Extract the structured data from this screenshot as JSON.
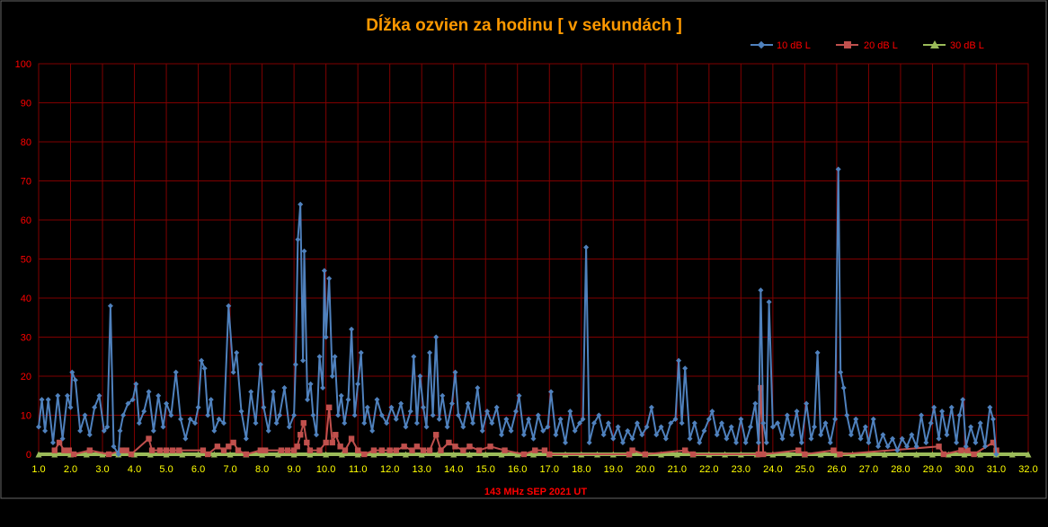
{
  "chart_data": {
    "type": "line",
    "title": "Dĺžka ozvien za hodinu [ v sekundách ]",
    "xlabel": "143 MHz SEP  2021  UT",
    "ylabel": "",
    "xlim": [
      1.0,
      32.0
    ],
    "ylim": [
      0,
      100
    ],
    "x_ticks": [
      "1.0",
      "2.0",
      "3.0",
      "4.0",
      "5.0",
      "6.0",
      "7.0",
      "8.0",
      "9.0",
      "10.0",
      "11.0",
      "12.0",
      "13.0",
      "14.0",
      "15.0",
      "16.0",
      "17.0",
      "18.0",
      "19.0",
      "20.0",
      "21.0",
      "22.0",
      "23.0",
      "24.0",
      "25.0",
      "26.0",
      "27.0",
      "28.0",
      "29.0",
      "30.0",
      "31.0",
      "32.0"
    ],
    "y_ticks": [
      "0",
      "10",
      "20",
      "30",
      "40",
      "50",
      "60",
      "70",
      "80",
      "90",
      "100"
    ],
    "grid": true,
    "legend_position": "top-right",
    "colors": {
      "title": "#FF9900",
      "axis_text": "#FF0000",
      "x_tick_text": "#FFFF00",
      "grid": "#800000",
      "series1": "#4F81BD",
      "series2": "#C0504D",
      "series3": "#9BBB59"
    },
    "series": [
      {
        "name": "10 dB L",
        "points": [
          [
            1.0,
            7
          ],
          [
            1.1,
            14
          ],
          [
            1.2,
            6
          ],
          [
            1.3,
            14
          ],
          [
            1.45,
            3
          ],
          [
            1.6,
            15
          ],
          [
            1.75,
            4
          ],
          [
            1.9,
            15
          ],
          [
            2.0,
            12
          ],
          [
            2.05,
            21
          ],
          [
            2.15,
            19
          ],
          [
            2.3,
            6
          ],
          [
            2.45,
            10
          ],
          [
            2.6,
            5
          ],
          [
            2.75,
            12
          ],
          [
            2.9,
            15
          ],
          [
            3.05,
            6
          ],
          [
            3.15,
            7
          ],
          [
            3.25,
            38
          ],
          [
            3.35,
            2
          ],
          [
            3.5,
            0
          ],
          [
            3.55,
            6
          ],
          [
            3.65,
            10
          ],
          [
            3.8,
            13
          ],
          [
            3.95,
            14
          ],
          [
            4.05,
            18
          ],
          [
            4.15,
            8
          ],
          [
            4.3,
            11
          ],
          [
            4.45,
            16
          ],
          [
            4.6,
            6
          ],
          [
            4.75,
            15
          ],
          [
            4.9,
            7
          ],
          [
            5.0,
            13
          ],
          [
            5.15,
            10
          ],
          [
            5.3,
            21
          ],
          [
            5.45,
            9
          ],
          [
            5.6,
            4
          ],
          [
            5.75,
            9
          ],
          [
            5.9,
            8
          ],
          [
            6.0,
            12
          ],
          [
            6.1,
            24
          ],
          [
            6.2,
            22
          ],
          [
            6.3,
            10
          ],
          [
            6.4,
            14
          ],
          [
            6.5,
            6
          ],
          [
            6.65,
            9
          ],
          [
            6.8,
            8
          ],
          [
            6.95,
            38
          ],
          [
            7.1,
            21
          ],
          [
            7.2,
            26
          ],
          [
            7.35,
            11
          ],
          [
            7.5,
            4
          ],
          [
            7.65,
            16
          ],
          [
            7.8,
            8
          ],
          [
            7.95,
            23
          ],
          [
            8.05,
            12
          ],
          [
            8.2,
            6
          ],
          [
            8.35,
            16
          ],
          [
            8.45,
            8
          ],
          [
            8.55,
            10
          ],
          [
            8.7,
            17
          ],
          [
            8.85,
            7
          ],
          [
            9.0,
            10
          ],
          [
            9.05,
            23
          ],
          [
            9.12,
            55
          ],
          [
            9.2,
            64
          ],
          [
            9.28,
            24
          ],
          [
            9.32,
            52
          ],
          [
            9.42,
            14
          ],
          [
            9.52,
            18
          ],
          [
            9.6,
            10
          ],
          [
            9.7,
            5
          ],
          [
            9.8,
            25
          ],
          [
            9.9,
            17
          ],
          [
            9.95,
            47
          ],
          [
            10.0,
            30
          ],
          [
            10.1,
            45
          ],
          [
            10.2,
            20
          ],
          [
            10.28,
            25
          ],
          [
            10.38,
            10
          ],
          [
            10.48,
            15
          ],
          [
            10.58,
            8
          ],
          [
            10.7,
            14
          ],
          [
            10.8,
            32
          ],
          [
            10.9,
            10
          ],
          [
            11.0,
            18
          ],
          [
            11.1,
            26
          ],
          [
            11.2,
            8
          ],
          [
            11.3,
            12
          ],
          [
            11.45,
            6
          ],
          [
            11.6,
            14
          ],
          [
            11.75,
            10
          ],
          [
            11.9,
            8
          ],
          [
            12.05,
            12
          ],
          [
            12.2,
            9
          ],
          [
            12.35,
            13
          ],
          [
            12.5,
            7
          ],
          [
            12.65,
            11
          ],
          [
            12.75,
            25
          ],
          [
            12.85,
            8
          ],
          [
            12.95,
            20
          ],
          [
            13.05,
            12
          ],
          [
            13.15,
            7
          ],
          [
            13.25,
            26
          ],
          [
            13.35,
            10
          ],
          [
            13.45,
            30
          ],
          [
            13.55,
            9
          ],
          [
            13.65,
            15
          ],
          [
            13.8,
            7
          ],
          [
            13.95,
            13
          ],
          [
            14.05,
            21
          ],
          [
            14.15,
            10
          ],
          [
            14.3,
            7
          ],
          [
            14.45,
            13
          ],
          [
            14.6,
            8
          ],
          [
            14.75,
            17
          ],
          [
            14.9,
            6
          ],
          [
            15.05,
            11
          ],
          [
            15.2,
            8
          ],
          [
            15.35,
            12
          ],
          [
            15.5,
            5
          ],
          [
            15.65,
            9
          ],
          [
            15.8,
            6
          ],
          [
            15.95,
            11
          ],
          [
            16.05,
            15
          ],
          [
            16.2,
            5
          ],
          [
            16.35,
            9
          ],
          [
            16.5,
            4
          ],
          [
            16.65,
            10
          ],
          [
            16.8,
            6
          ],
          [
            16.95,
            7
          ],
          [
            17.05,
            16
          ],
          [
            17.2,
            5
          ],
          [
            17.35,
            9
          ],
          [
            17.5,
            3
          ],
          [
            17.65,
            11
          ],
          [
            17.8,
            6
          ],
          [
            17.95,
            8
          ],
          [
            18.05,
            9
          ],
          [
            18.15,
            53
          ],
          [
            18.25,
            3
          ],
          [
            18.4,
            8
          ],
          [
            18.55,
            10
          ],
          [
            18.7,
            5
          ],
          [
            18.85,
            8
          ],
          [
            19.0,
            4
          ],
          [
            19.15,
            7
          ],
          [
            19.3,
            3
          ],
          [
            19.45,
            6
          ],
          [
            19.6,
            4
          ],
          [
            19.75,
            8
          ],
          [
            19.9,
            5
          ],
          [
            20.05,
            7
          ],
          [
            20.2,
            12
          ],
          [
            20.35,
            5
          ],
          [
            20.5,
            7
          ],
          [
            20.65,
            4
          ],
          [
            20.8,
            8
          ],
          [
            20.95,
            9
          ],
          [
            21.05,
            24
          ],
          [
            21.15,
            8
          ],
          [
            21.25,
            22
          ],
          [
            21.4,
            4
          ],
          [
            21.55,
            8
          ],
          [
            21.7,
            3
          ],
          [
            21.85,
            6
          ],
          [
            22.0,
            9
          ],
          [
            22.1,
            11
          ],
          [
            22.25,
            5
          ],
          [
            22.4,
            8
          ],
          [
            22.55,
            4
          ],
          [
            22.7,
            7
          ],
          [
            22.85,
            3
          ],
          [
            23.0,
            9
          ],
          [
            23.15,
            3
          ],
          [
            23.3,
            7
          ],
          [
            23.45,
            13
          ],
          [
            23.55,
            3
          ],
          [
            23.62,
            42
          ],
          [
            23.7,
            8
          ],
          [
            23.8,
            3
          ],
          [
            23.88,
            39
          ],
          [
            24.0,
            7
          ],
          [
            24.15,
            8
          ],
          [
            24.3,
            4
          ],
          [
            24.45,
            10
          ],
          [
            24.6,
            5
          ],
          [
            24.75,
            11
          ],
          [
            24.9,
            3
          ],
          [
            25.05,
            13
          ],
          [
            25.2,
            4
          ],
          [
            25.3,
            7
          ],
          [
            25.4,
            26
          ],
          [
            25.5,
            5
          ],
          [
            25.65,
            8
          ],
          [
            25.8,
            3
          ],
          [
            25.95,
            9
          ],
          [
            26.05,
            73
          ],
          [
            26.12,
            21
          ],
          [
            26.22,
            17
          ],
          [
            26.32,
            10
          ],
          [
            26.45,
            5
          ],
          [
            26.6,
            9
          ],
          [
            26.75,
            4
          ],
          [
            26.9,
            7
          ],
          [
            27.0,
            3
          ],
          [
            27.15,
            9
          ],
          [
            27.3,
            2
          ],
          [
            27.45,
            5
          ],
          [
            27.6,
            2
          ],
          [
            27.75,
            4
          ],
          [
            27.9,
            1
          ],
          [
            28.05,
            4
          ],
          [
            28.2,
            2
          ],
          [
            28.35,
            5
          ],
          [
            28.5,
            2
          ],
          [
            28.65,
            10
          ],
          [
            28.8,
            3
          ],
          [
            28.95,
            8
          ],
          [
            29.05,
            12
          ],
          [
            29.2,
            4
          ],
          [
            29.3,
            11
          ],
          [
            29.45,
            5
          ],
          [
            29.6,
            12
          ],
          [
            29.75,
            3
          ],
          [
            29.85,
            10
          ],
          [
            29.95,
            14
          ],
          [
            30.05,
            2
          ],
          [
            30.2,
            7
          ],
          [
            30.35,
            3
          ],
          [
            30.5,
            8
          ],
          [
            30.65,
            2
          ],
          [
            30.8,
            12
          ],
          [
            30.9,
            9
          ],
          [
            31.0,
            0
          ]
        ]
      },
      {
        "name": "20 dB L",
        "points": [
          [
            1.5,
            1
          ],
          [
            1.65,
            3
          ],
          [
            1.8,
            1
          ],
          [
            1.95,
            1
          ],
          [
            2.1,
            0
          ],
          [
            2.6,
            1
          ],
          [
            3.2,
            0
          ],
          [
            3.6,
            1
          ],
          [
            3.75,
            1
          ],
          [
            3.9,
            0
          ],
          [
            4.45,
            4
          ],
          [
            4.55,
            1
          ],
          [
            4.8,
            1
          ],
          [
            5.0,
            1
          ],
          [
            5.2,
            1
          ],
          [
            5.4,
            1
          ],
          [
            6.15,
            1
          ],
          [
            6.3,
            0
          ],
          [
            6.6,
            2
          ],
          [
            6.8,
            1
          ],
          [
            6.95,
            2
          ],
          [
            7.1,
            3
          ],
          [
            7.25,
            1
          ],
          [
            7.5,
            0
          ],
          [
            7.95,
            1
          ],
          [
            8.1,
            1
          ],
          [
            8.6,
            1
          ],
          [
            8.8,
            1
          ],
          [
            9.0,
            1
          ],
          [
            9.1,
            2
          ],
          [
            9.2,
            5
          ],
          [
            9.3,
            8
          ],
          [
            9.4,
            3
          ],
          [
            9.5,
            1
          ],
          [
            9.8,
            1
          ],
          [
            10.0,
            3
          ],
          [
            10.1,
            12
          ],
          [
            10.2,
            3
          ],
          [
            10.3,
            5
          ],
          [
            10.45,
            2
          ],
          [
            10.6,
            1
          ],
          [
            10.8,
            4
          ],
          [
            11.0,
            1
          ],
          [
            11.2,
            0
          ],
          [
            11.5,
            1
          ],
          [
            11.75,
            1
          ],
          [
            12.0,
            1
          ],
          [
            12.2,
            1
          ],
          [
            12.45,
            2
          ],
          [
            12.7,
            1
          ],
          [
            12.85,
            2
          ],
          [
            13.05,
            1
          ],
          [
            13.25,
            1
          ],
          [
            13.45,
            5
          ],
          [
            13.6,
            1
          ],
          [
            13.85,
            3
          ],
          [
            14.05,
            2
          ],
          [
            14.3,
            1
          ],
          [
            14.5,
            2
          ],
          [
            14.8,
            1
          ],
          [
            15.15,
            2
          ],
          [
            15.6,
            1
          ],
          [
            16.2,
            0
          ],
          [
            16.55,
            1
          ],
          [
            16.85,
            1
          ],
          [
            17.0,
            0
          ],
          [
            19.5,
            0
          ],
          [
            19.6,
            1
          ],
          [
            20.0,
            0
          ],
          [
            21.25,
            1
          ],
          [
            21.5,
            0
          ],
          [
            23.55,
            0
          ],
          [
            23.62,
            17
          ],
          [
            23.7,
            0
          ],
          [
            24.8,
            1
          ],
          [
            25.0,
            0
          ],
          [
            25.9,
            1
          ],
          [
            26.1,
            0
          ],
          [
            29.2,
            2
          ],
          [
            29.35,
            0
          ],
          [
            29.9,
            1
          ],
          [
            30.1,
            1
          ],
          [
            30.3,
            0
          ],
          [
            30.9,
            3
          ],
          [
            31.0,
            1
          ]
        ]
      },
      {
        "name": "30 dB L",
        "points": [
          [
            1.0,
            0
          ],
          [
            32.0,
            0
          ]
        ]
      }
    ]
  }
}
